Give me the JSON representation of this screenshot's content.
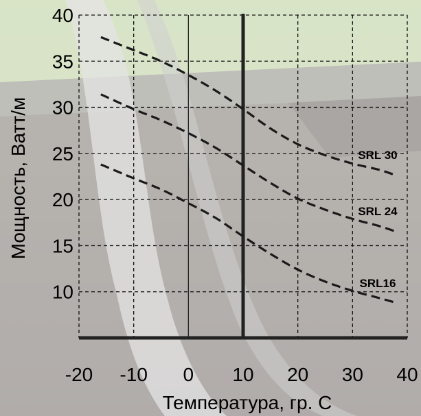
{
  "chart_data": {
    "type": "line",
    "xlabel": "Температура, гр. С",
    "ylabel": "Мощность, Ватт/м",
    "xlim": [
      -20,
      40
    ],
    "ylim": [
      5,
      40
    ],
    "x_ticks": [
      -20,
      -10,
      0,
      10,
      20,
      30,
      40
    ],
    "y_ticks": [
      10,
      15,
      20,
      25,
      30,
      35,
      40
    ],
    "x_tick_labels": [
      "-20",
      "-10",
      "0",
      "10",
      "20",
      "30",
      "40"
    ],
    "y_tick_labels": [
      "10",
      "15",
      "20",
      "25",
      "30",
      "35",
      "40"
    ],
    "grid": true,
    "emphasized_x": 10,
    "series": [
      {
        "name": "SRL 30",
        "x": [
          -16,
          -10,
          -5,
          0,
          5,
          10,
          15,
          20,
          25,
          30,
          35,
          38
        ],
        "y": [
          37.6,
          36.2,
          35.0,
          33.5,
          31.8,
          29.8,
          27.7,
          26.0,
          24.8,
          23.9,
          23.2,
          22.6
        ]
      },
      {
        "name": "SRL 24",
        "x": [
          -16,
          -10,
          -5,
          0,
          5,
          10,
          15,
          20,
          25,
          30,
          35,
          38
        ],
        "y": [
          31.4,
          29.8,
          28.6,
          27.2,
          25.6,
          23.7,
          21.8,
          20.1,
          18.9,
          17.9,
          17.1,
          16.5
        ]
      },
      {
        "name": "SRL16",
        "x": [
          -16,
          -10,
          -5,
          0,
          5,
          10,
          15,
          20,
          25,
          30,
          35,
          38
        ],
        "y": [
          23.8,
          22.3,
          21.1,
          19.6,
          18.0,
          16.0,
          14.1,
          12.4,
          11.1,
          10.1,
          9.3,
          8.8
        ]
      }
    ],
    "colors": {
      "background_sky": "#d7e2c6",
      "background_wall": "#bdbdb8",
      "background_floor": "#a9a39f",
      "curve": "#1a1a1a",
      "grid": "#111111",
      "axis": "#222222",
      "text": "#000000"
    }
  }
}
